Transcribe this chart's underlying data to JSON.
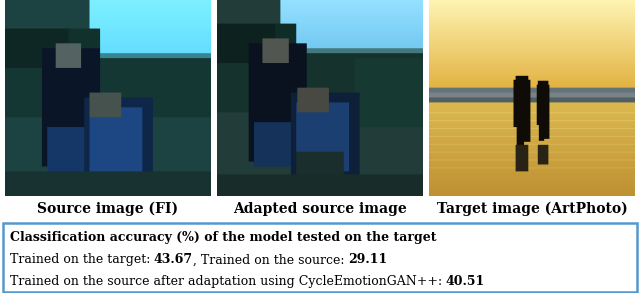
{
  "image_labels": [
    "Source image (FI)",
    "Adapted source image",
    "Target image (ArtPhoto)"
  ],
  "box_line1_bold": "Classification accuracy (%) of the model tested on the target",
  "box_line2_normal": "Trained on the target: ",
  "box_line2_bold1": "43.67",
  "box_line2_mid": ", Trained on the source: ",
  "box_line2_bold2": "29.11",
  "box_line3_normal": "Trained on the source after adaptation using CycleEmotionGAN++: ",
  "box_line3_bold": "40.51",
  "fig_width": 6.4,
  "fig_height": 2.93,
  "dpi": 100,
  "label_fontsize": 10.0,
  "text_fontsize": 9.0,
  "border_color": "#5599cc"
}
